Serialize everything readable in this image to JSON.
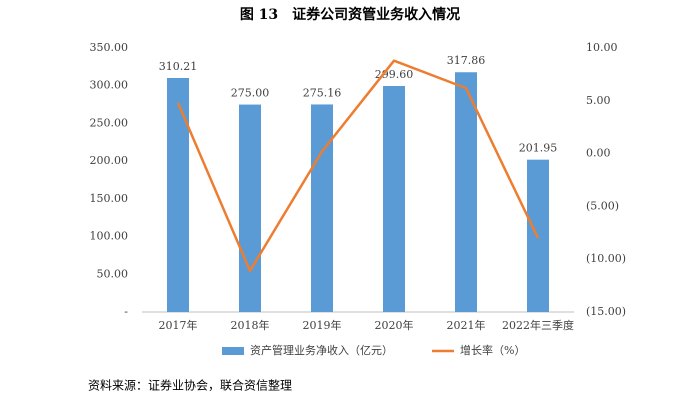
{
  "chart_data": {
    "type": "bar",
    "title": "图 13　证券公司资管业务收入情况",
    "source": "资料来源：证券业协会，联合资信整理",
    "categories": [
      "2017年",
      "2018年",
      "2019年",
      "2020年",
      "2021年",
      "2022年三季度"
    ],
    "series": [
      {
        "name": "资产管理业务净收入（亿元）",
        "color": "#5b9bd5",
        "type": "bar",
        "values": [
          310.21,
          275.0,
          275.16,
          299.6,
          317.86,
          201.95
        ],
        "value_labels": [
          "310.21",
          "275.00",
          "275.16",
          "299.60",
          "317.86",
          "201.95"
        ]
      },
      {
        "name": "增长率（%）",
        "color": "#ed7d31",
        "type": "line",
        "axis": "y2",
        "values": [
          4.8,
          -11.1,
          0.2,
          8.8,
          6.2,
          -8.0
        ]
      }
    ],
    "ylim": [
      0,
      350
    ],
    "yticks": [
      {
        "value": 0,
        "label": "-"
      },
      {
        "value": 50,
        "label": "50.00"
      },
      {
        "value": 100,
        "label": "100.00"
      },
      {
        "value": 150,
        "label": "150.00"
      },
      {
        "value": 200,
        "label": "200.00"
      },
      {
        "value": 250,
        "label": "250.00"
      },
      {
        "value": 300,
        "label": "300.00"
      },
      {
        "value": 350,
        "label": "350.00"
      }
    ],
    "y2lim": [
      -15,
      10
    ],
    "y2ticks": [
      {
        "value": -15,
        "label": "(15.00)"
      },
      {
        "value": -10,
        "label": "(10.00)"
      },
      {
        "value": -5,
        "label": "(5.00)"
      },
      {
        "value": 0,
        "label": "0.00"
      },
      {
        "value": 5,
        "label": "5.00"
      },
      {
        "value": 10,
        "label": "10.00"
      }
    ],
    "negative_tick_color": "#c00000",
    "grid": false,
    "legend": "bottom"
  }
}
